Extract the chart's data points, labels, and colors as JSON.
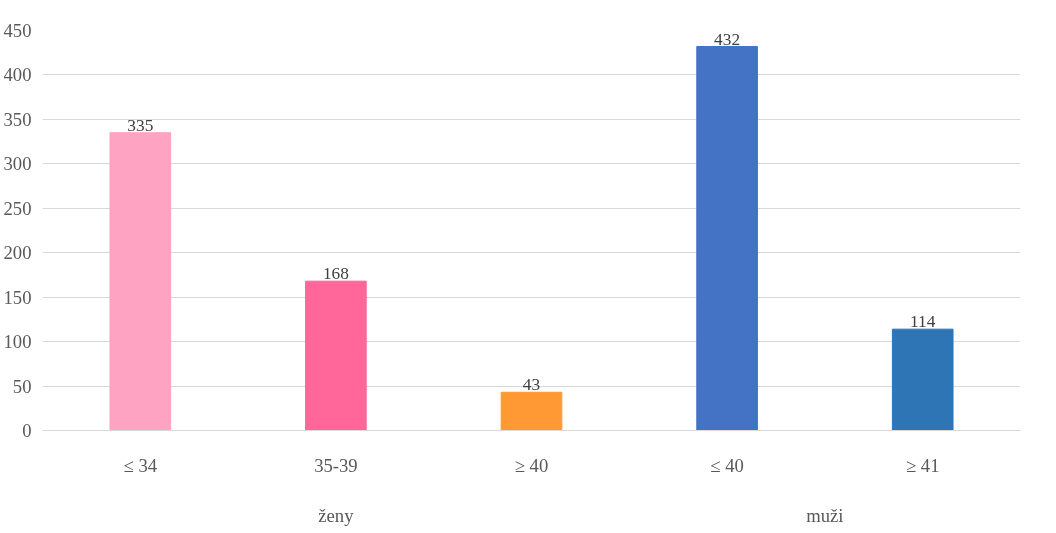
{
  "chart_data": {
    "type": "bar",
    "categories": [
      "≤ 34",
      "35-39",
      "≥ 40",
      "≤ 40",
      "≥ 41"
    ],
    "values": [
      335,
      168,
      43,
      432,
      114
    ],
    "colors": [
      "#ffa3c3",
      "#ff6699",
      "#ff9933",
      "#4472c4",
      "#2e75b6"
    ],
    "ylim": [
      0,
      450
    ],
    "yticks": [
      0,
      50,
      100,
      150,
      200,
      250,
      300,
      350,
      400,
      450
    ],
    "grid": "y",
    "data_labels": true,
    "annotations": [
      "ženy",
      "muži"
    ]
  }
}
